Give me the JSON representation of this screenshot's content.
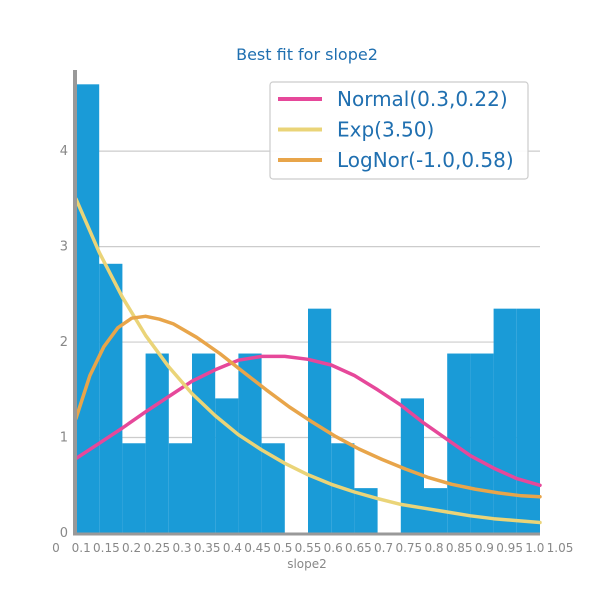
{
  "chart_data": {
    "type": "bar",
    "title": "Best fit for slope2",
    "xlabel": "slope2",
    "ylabel": "",
    "xlim": [
      0.09,
      1.09
    ],
    "ylim": [
      0,
      4.85
    ],
    "yticks": [
      0,
      1,
      2,
      3,
      4
    ],
    "grid": "horizontal",
    "legend_position": "top-right",
    "colors": {
      "bars": "#1a9bd7",
      "title": "#1f6fb0",
      "axis": "#999999",
      "grid": "#cccccc",
      "legend_text": "#1f6fb0"
    },
    "histogram": {
      "bin_edges": [
        0.09,
        0.14,
        0.19,
        0.24,
        0.29,
        0.34,
        0.39,
        0.44,
        0.49,
        0.54,
        0.59,
        0.64,
        0.69,
        0.74,
        0.79,
        0.84,
        0.89,
        0.94,
        0.99,
        1.04,
        1.09
      ],
      "values": [
        4.7,
        2.82,
        0.94,
        1.88,
        0.94,
        1.88,
        1.41,
        1.88,
        0.94,
        0,
        2.35,
        0.94,
        0.47,
        0,
        1.41,
        0.47,
        1.88,
        1.88,
        2.35,
        2.35
      ]
    },
    "series": [
      {
        "name": "Normal(0.3,0.22)",
        "color": "#e6489a",
        "x": [
          0.09,
          0.14,
          0.19,
          0.24,
          0.29,
          0.34,
          0.39,
          0.44,
          0.49,
          0.54,
          0.59,
          0.64,
          0.69,
          0.74,
          0.79,
          0.84,
          0.89,
          0.94,
          0.99,
          1.04,
          1.09
        ],
        "y": [
          0.78,
          0.94,
          1.1,
          1.27,
          1.43,
          1.59,
          1.71,
          1.81,
          1.85,
          1.85,
          1.82,
          1.76,
          1.65,
          1.5,
          1.34,
          1.15,
          0.98,
          0.81,
          0.68,
          0.57,
          0.5
        ]
      },
      {
        "name": "Exp(3.50)",
        "color": "#ead478",
        "x": [
          0.09,
          0.14,
          0.19,
          0.24,
          0.29,
          0.34,
          0.39,
          0.44,
          0.49,
          0.54,
          0.59,
          0.64,
          0.69,
          0.74,
          0.79,
          0.84,
          0.89,
          0.94,
          0.99,
          1.04,
          1.09
        ],
        "y": [
          3.5,
          2.94,
          2.47,
          2.07,
          1.74,
          1.46,
          1.23,
          1.03,
          0.87,
          0.73,
          0.61,
          0.51,
          0.43,
          0.36,
          0.3,
          0.26,
          0.22,
          0.18,
          0.15,
          0.13,
          0.11
        ]
      },
      {
        "name": "LogNor(-1.0,0.58)",
        "color": "#e8a54a",
        "x": [
          0.09,
          0.12,
          0.15,
          0.18,
          0.21,
          0.24,
          0.27,
          0.3,
          0.35,
          0.4,
          0.45,
          0.5,
          0.55,
          0.6,
          0.65,
          0.7,
          0.75,
          0.8,
          0.85,
          0.9,
          0.95,
          1.0,
          1.05,
          1.09
        ],
        "y": [
          1.2,
          1.65,
          1.95,
          2.15,
          2.25,
          2.27,
          2.24,
          2.19,
          2.05,
          1.88,
          1.69,
          1.5,
          1.32,
          1.16,
          1.01,
          0.88,
          0.77,
          0.67,
          0.58,
          0.51,
          0.46,
          0.42,
          0.39,
          0.38
        ]
      }
    ],
    "x_tick_labels": [
      "0",
      "0.1",
      "0.15",
      "0.2",
      "0.25",
      "0.3",
      "0.35",
      "0.4",
      "0.45",
      "0.5",
      "0.55",
      "0.6",
      "0.65",
      "0.7",
      "0.75",
      "0.8",
      "0.85",
      "0.9",
      "0.95",
      "1.0",
      "1.05"
    ]
  }
}
